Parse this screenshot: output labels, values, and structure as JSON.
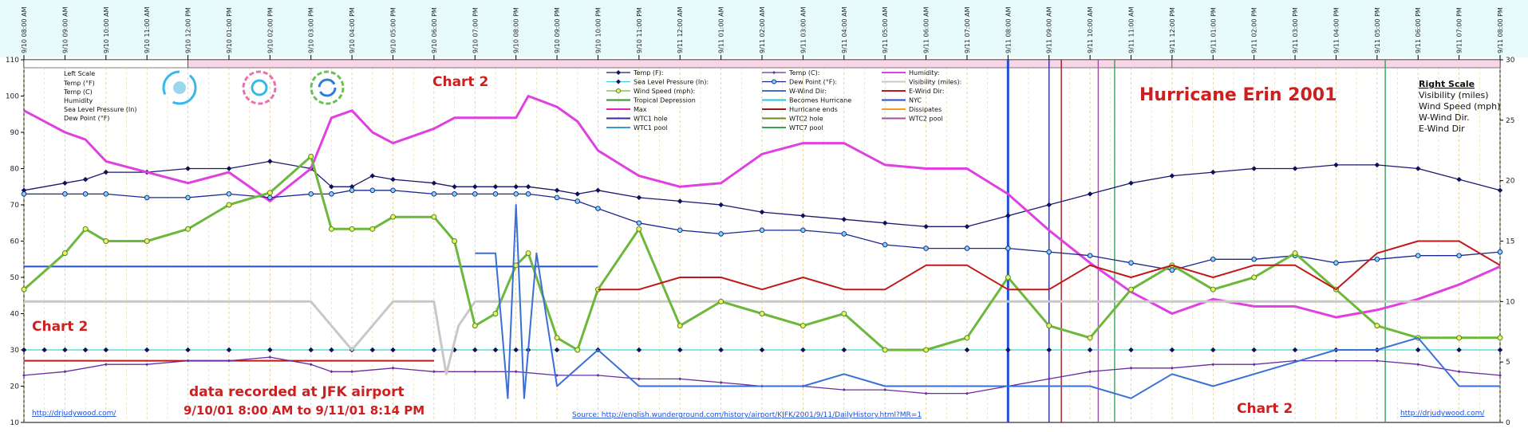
{
  "chart_data": {
    "type": "line",
    "title": "Hurricane Erin 2001",
    "chart_labels": [
      "Chart 2",
      "Chart 2",
      "Chart 2"
    ],
    "note_line1": "data recorded at JFK airport",
    "note_line2": "9/10/01 8:00 AM to 9/11/01 8:14 PM",
    "source_text": "Source:  http://english.wunderground.com/history/airport/KJFK/2001/9/11/DailyHistory.html?MR=1",
    "author_link": "http://drjudywood.com/",
    "left_scale": {
      "title": "Left Scale",
      "items": [
        "Temp (°F)",
        "Temp (C)",
        "Humidity",
        "Sea Level Pressure (In)",
        "Dew Point (°F)"
      ],
      "ylim": [
        10,
        110
      ],
      "ticks": [
        10,
        20,
        30,
        40,
        50,
        60,
        70,
        80,
        90,
        100,
        110
      ]
    },
    "right_scale": {
      "title": "Right Scale",
      "items": [
        "Visibility (miles)",
        "Wind Speed (mph)",
        "W-Wind Dir.",
        "E-Wind Dir"
      ],
      "ylim": [
        0,
        30
      ],
      "ticks": [
        0,
        5,
        10,
        15,
        20,
        25,
        30
      ]
    },
    "x_range_hours": [
      0,
      36
    ],
    "x_ticks": [
      "9/10 08:00 AM",
      "9/10 09:00 AM",
      "9/10 10:00 AM",
      "9/10 11:00 AM",
      "9/10 12:00 PM",
      "9/10 01:00 PM",
      "9/10 02:00 PM",
      "9/10 03:00 PM",
      "9/10 04:00 PM",
      "9/10 05:00 PM",
      "9/10 06:00 PM",
      "9/10 07:00 PM",
      "9/10 08:00 PM",
      "9/10 09:00 PM",
      "9/10 10:00 PM",
      "9/10 11:00 PM",
      "9/11 12:00 AM",
      "9/11 01:00 AM",
      "9/11 02:00 AM",
      "9/11 03:00 AM",
      "9/11 04:00 AM",
      "9/11 05:00 AM",
      "9/11 06:00 AM",
      "9/11 07:00 AM",
      "9/11 08:00 AM",
      "9/11 09:00 AM",
      "9/11 10:00 AM",
      "9/11 11:00 AM",
      "9/11 12:00 PM",
      "9/11 01:00 PM",
      "9/11 02:00 PM",
      "9/11 03:00 PM",
      "9/11 04:00 PM",
      "9/11 05:00 PM",
      "9/11 06:00 PM",
      "9/11 07:00 PM",
      "9/11 08:00 PM"
    ],
    "legend": [
      {
        "name": "Temp (F):",
        "color": "#1a1a6e",
        "marker": "diamond"
      },
      {
        "name": "Temp (C):",
        "color": "#6a2ca0",
        "marker": "diamond-small"
      },
      {
        "name": "Humidity:",
        "color": "#e040e0",
        "marker": "none"
      },
      {
        "name": "Sea Level Pressure (In):",
        "color": "#40d0d8",
        "marker": "diamond"
      },
      {
        "name": "Dew Point (°F):",
        "color": "#1a2a8e",
        "marker": "circle"
      },
      {
        "name": "Visibility (miles):",
        "color": "#c8c8c8",
        "marker": "none"
      },
      {
        "name": "Wind Speed (mph):",
        "color": "#6cb83c",
        "marker": "circle-yellow"
      },
      {
        "name": "W-Wind Dir:",
        "color": "#3a6fd8",
        "marker": "none"
      },
      {
        "name": "E-Wind Dir:",
        "color": "#c01818",
        "marker": "none"
      },
      {
        "name": "Tropical Depression",
        "color": "#2a9a2a",
        "marker": "none"
      },
      {
        "name": "Becomes Hurricane",
        "color": "#20c8e0",
        "marker": "none"
      },
      {
        "name": "NYC",
        "color": "#2050d0",
        "marker": "none"
      },
      {
        "name": "Max",
        "color": "#e020c0",
        "marker": "none"
      },
      {
        "name": "Hurricane ends",
        "color": "#a01818",
        "marker": "none"
      },
      {
        "name": "Dissipates",
        "color": "#f0a020",
        "marker": "none"
      },
      {
        "name": "WTC1 hole",
        "color": "#303090",
        "marker": "none"
      },
      {
        "name": "WTC2 hole",
        "color": "#6a8a2a",
        "marker": "none"
      },
      {
        "name": "WTC2 pool",
        "color": "#a050a0",
        "marker": "none"
      },
      {
        "name": "WTC1 pool",
        "color": "#3a9ad8",
        "marker": "none"
      },
      {
        "name": "WTC7 pool",
        "color": "#3aa05a",
        "marker": "none"
      }
    ],
    "series": [
      {
        "name": "Temp (F):",
        "axis": "left",
        "color": "#1a1a6e",
        "marker": "diamond",
        "x": [
          0,
          1,
          1.5,
          2,
          3,
          4,
          5,
          6,
          7,
          7.5,
          8,
          8.5,
          9,
          10,
          10.5,
          11,
          11.5,
          12,
          12.3,
          13,
          13.5,
          14,
          15,
          16,
          17,
          18,
          19,
          20,
          21,
          22,
          23,
          24,
          25,
          26,
          27,
          28,
          29,
          30,
          31,
          32,
          33,
          34,
          35,
          36
        ],
        "y": [
          74,
          76,
          77,
          79,
          79,
          80,
          80,
          82,
          80,
          75,
          75,
          78,
          77,
          76,
          75,
          75,
          75,
          75,
          75,
          74,
          73,
          74,
          72,
          71,
          70,
          68,
          67,
          66,
          65,
          64,
          64,
          67,
          70,
          73,
          76,
          78,
          79,
          80,
          80,
          81,
          81,
          80,
          77,
          74
        ]
      },
      {
        "name": "Temp (C):",
        "axis": "left",
        "color": "#6a2ca0",
        "marker": "diamond-small",
        "x": [
          0,
          1,
          2,
          3,
          4,
          5,
          6,
          7,
          7.5,
          8,
          9,
          10,
          11,
          12,
          13,
          14,
          15,
          16,
          17,
          18,
          19,
          20,
          21,
          22,
          23,
          24,
          25,
          26,
          27,
          28,
          29,
          30,
          31,
          32,
          33,
          34,
          35,
          36
        ],
        "y": [
          23,
          24,
          26,
          26,
          27,
          27,
          28,
          26,
          24,
          24,
          25,
          24,
          24,
          24,
          23,
          23,
          22,
          22,
          21,
          20,
          20,
          19,
          19,
          18,
          18,
          20,
          22,
          24,
          25,
          25,
          26,
          26,
          27,
          27,
          27,
          26,
          24,
          23
        ]
      },
      {
        "name": "Humidity:",
        "axis": "left",
        "color": "#e040e0",
        "marker": "none",
        "x": [
          0,
          1,
          1.5,
          2,
          3,
          4,
          5,
          6,
          7,
          7.5,
          8,
          8.5,
          9,
          10,
          10.5,
          11,
          11.5,
          12,
          12.3,
          13,
          13.5,
          14,
          15,
          16,
          17,
          18,
          19,
          20,
          21,
          22,
          23,
          24,
          25,
          26,
          27,
          28,
          29,
          30,
          31,
          32,
          33,
          34,
          35,
          36
        ],
        "y": [
          96,
          90,
          88,
          82,
          79,
          76,
          79,
          71,
          80,
          94,
          96,
          90,
          87,
          91,
          94,
          94,
          94,
          94,
          100,
          97,
          93,
          85,
          78,
          75,
          76,
          84,
          87,
          87,
          81,
          80,
          80,
          73,
          63,
          54,
          46,
          40,
          44,
          42,
          42,
          39,
          41,
          44,
          48,
          53
        ]
      },
      {
        "name": "Sea Level Pressure (In):",
        "axis": "left",
        "color": "#40d0d8",
        "marker": "diamond",
        "x": [
          0,
          0.5,
          1,
          1.5,
          2,
          3,
          4,
          5,
          6,
          7,
          7.5,
          8,
          8.5,
          9,
          10,
          10.5,
          11,
          11.5,
          12,
          12.3,
          13,
          13.5,
          14,
          15,
          16,
          17,
          18,
          19,
          20,
          21,
          22,
          23,
          24,
          25,
          26,
          27,
          28,
          29,
          30,
          31,
          32,
          33,
          34,
          35,
          36
        ],
        "y": [
          30,
          30,
          30,
          30,
          30,
          30,
          30,
          30,
          30,
          30,
          30,
          30,
          30,
          30,
          30,
          30,
          30,
          30,
          30,
          30,
          30,
          30,
          30,
          30,
          30,
          30,
          30,
          30,
          30,
          30,
          30,
          30,
          30,
          30,
          30,
          30,
          30,
          30,
          30,
          30,
          30,
          30,
          30,
          30,
          30
        ]
      },
      {
        "name": "Dew Point (°F):",
        "axis": "left",
        "color": "#1a2a8e",
        "marker": "circle",
        "x": [
          0,
          1,
          1.5,
          2,
          3,
          4,
          5,
          6,
          7,
          7.5,
          8,
          8.5,
          9,
          10,
          10.5,
          11,
          11.5,
          12,
          12.3,
          13,
          13.5,
          14,
          15,
          16,
          17,
          18,
          19,
          20,
          21,
          22,
          23,
          24,
          25,
          26,
          27,
          28,
          29,
          30,
          31,
          32,
          33,
          34,
          35,
          36
        ],
        "y": [
          73,
          73,
          73,
          73,
          72,
          72,
          73,
          72,
          73,
          73,
          74,
          74,
          74,
          73,
          73,
          73,
          73,
          73,
          73,
          72,
          71,
          69,
          65,
          63,
          62,
          63,
          63,
          62,
          59,
          58,
          58,
          58,
          57,
          56,
          54,
          52,
          55,
          55,
          56,
          54,
          55,
          56,
          56,
          57
        ]
      },
      {
        "name": "Visibility (miles):",
        "axis": "right",
        "color": "#c8c8c8",
        "marker": "none",
        "x": [
          0,
          6,
          7,
          7.5,
          8,
          8.5,
          9,
          10,
          10.3,
          10.6,
          11,
          11.5,
          12,
          13,
          14,
          16,
          18,
          20,
          22,
          24,
          26,
          28,
          30,
          32,
          34,
          36
        ],
        "y": [
          10,
          10,
          10,
          8,
          6,
          8,
          10,
          10,
          4,
          8,
          10,
          10,
          10,
          10,
          10,
          10,
          10,
          10,
          10,
          10,
          10,
          10,
          10,
          10,
          10,
          10
        ]
      },
      {
        "name": "Wind Speed (mph):",
        "axis": "right",
        "color": "#6cb83c",
        "marker": "circle-yellow",
        "x": [
          0,
          1,
          1.5,
          2,
          3,
          4,
          5,
          6,
          7,
          7.5,
          8,
          8.5,
          9,
          10,
          10.5,
          11,
          11.5,
          12,
          12.3,
          13,
          13.5,
          14,
          15,
          16,
          17,
          18,
          19,
          20,
          21,
          22,
          23,
          24,
          25,
          26,
          27,
          28,
          29,
          30,
          31,
          32,
          33,
          34,
          35,
          36
        ],
        "y": [
          11,
          14,
          16,
          15,
          15,
          16,
          18,
          19,
          22,
          16,
          16,
          16,
          17,
          17,
          15,
          8,
          9,
          13,
          14,
          7,
          6,
          11,
          16,
          8,
          10,
          9,
          8,
          9,
          6,
          6,
          7,
          12,
          8,
          7,
          11,
          13,
          11,
          12,
          14,
          11,
          8,
          7,
          7,
          7
        ]
      },
      {
        "name": "W-Wind Dir:",
        "axis": "right",
        "color": "#3a6fd8",
        "marker": "none",
        "x": [
          11,
          11.5,
          11.8,
          12,
          12.2,
          12.5,
          13,
          14,
          15,
          16,
          17,
          18,
          19,
          20,
          21,
          22,
          23,
          24,
          25,
          26,
          27,
          28,
          29,
          30,
          31,
          32,
          33,
          34,
          35,
          36
        ],
        "y": [
          14,
          14,
          2,
          18,
          2,
          14,
          3,
          6,
          3,
          3,
          3,
          3,
          3,
          4,
          3,
          3,
          3,
          3,
          3,
          3,
          2,
          4,
          3,
          4,
          5,
          6,
          6,
          7,
          3,
          3
        ]
      },
      {
        "name": "E-Wind Dir:",
        "axis": "right",
        "color": "#c01818",
        "marker": "none",
        "x": [
          14,
          15,
          16,
          17,
          18,
          19,
          20,
          21,
          22,
          23,
          24,
          25,
          26,
          27,
          28,
          29,
          30,
          31,
          32,
          33,
          34,
          35,
          36
        ],
        "y": [
          11,
          11,
          12,
          12,
          11,
          12,
          11,
          11,
          13,
          13,
          11,
          11,
          13,
          12,
          13,
          12,
          13,
          13,
          11,
          14,
          15,
          15,
          13
        ]
      }
    ],
    "reference_lines_h": [
      {
        "name": "Tropical Depression",
        "axis": "left",
        "value": 53,
        "x": [
          0,
          14
        ],
        "color": "#2050d0"
      },
      {
        "name": "Hurricane ends",
        "axis": "left",
        "value": 27,
        "x": [
          0,
          10
        ],
        "color": "#c01818"
      }
    ],
    "event_lines_v": [
      {
        "name": "NYC",
        "x": 24,
        "color": "#2050d0"
      },
      {
        "name": "WTC1 hole",
        "x": 25,
        "color": "#303090"
      },
      {
        "name": "WTC2 hole",
        "x": 25.3,
        "color": "#a01818"
      },
      {
        "name": "WTC2 pool",
        "x": 26.2,
        "color": "#a050a0"
      },
      {
        "name": "WTC1 pool",
        "x": 26.6,
        "color": "#3aa05a"
      },
      {
        "name": "WTC7 pool",
        "x": 33.2,
        "color": "#3aa05a"
      }
    ],
    "grid": true
  }
}
